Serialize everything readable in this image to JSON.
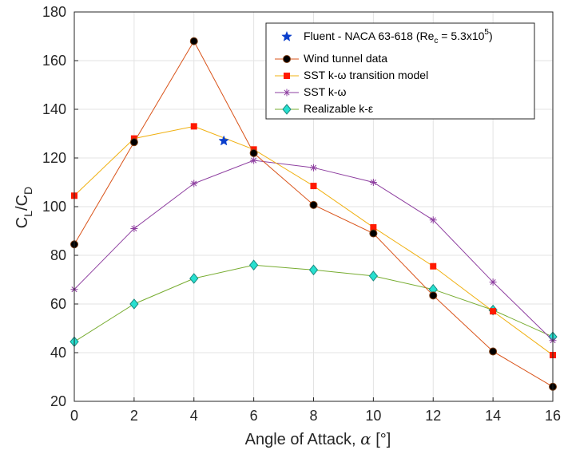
{
  "chart_data": {
    "type": "line",
    "xlabel": "Angle of Attack, α [°]",
    "ylabel": "CL/CD",
    "ylabel_parts": {
      "main1": "C",
      "sub1": "L",
      "slash": "/C",
      "sub2": "D"
    },
    "xlabel_parts": {
      "pre": "Angle of Attack, ",
      "symbol": "α",
      "post": " [°]"
    },
    "xlim": [
      0,
      16
    ],
    "ylim": [
      20,
      180
    ],
    "xticks": [
      0,
      2,
      4,
      6,
      8,
      10,
      12,
      14,
      16
    ],
    "yticks": [
      20,
      40,
      60,
      80,
      100,
      120,
      140,
      160,
      180
    ],
    "grid": true,
    "legend_position": "top-right",
    "series": [
      {
        "name": "Fluent - NACA 63-618 (Rec = 5.3x10^5)",
        "legend_parts": {
          "pre": "Fluent - NACA 63-618 (Re",
          "sub": "c",
          "mid": " = 5.3x10",
          "sup": "5",
          "post": ")"
        },
        "marker": "star",
        "line": false,
        "color": "#0a3fcc",
        "x": [
          5
        ],
        "y": [
          127
        ]
      },
      {
        "name": "Wind tunnel data",
        "marker": "circle",
        "line": true,
        "color": "#d95319",
        "marker_fill": "#000000",
        "marker_edge": "#7a3b12",
        "x": [
          0,
          2,
          4,
          6,
          8,
          10,
          12,
          14,
          16
        ],
        "y": [
          84.5,
          126.5,
          168,
          122,
          100.7,
          89,
          63.5,
          40.5,
          26
        ]
      },
      {
        "name": "SST k-ω transition model",
        "marker": "square",
        "line": true,
        "color": "#f0b010",
        "marker_fill": "#ff1a00",
        "marker_edge": "#ff1a00",
        "x": [
          0,
          2,
          4,
          6,
          8,
          10,
          12,
          14,
          16
        ],
        "y": [
          104.5,
          128,
          133,
          123.5,
          108.5,
          91.5,
          75.5,
          57,
          39
        ]
      },
      {
        "name": "SST k-ω",
        "marker": "asterisk",
        "line": true,
        "color": "#8e3fa0",
        "marker_fill": "#8e3fa0",
        "marker_edge": "#8e3fa0",
        "x": [
          0,
          2,
          4,
          6,
          8,
          10,
          12,
          14,
          16
        ],
        "y": [
          66,
          91,
          109.5,
          119,
          116,
          110,
          94.5,
          69,
          45
        ]
      },
      {
        "name": "Realizable k-ε",
        "marker": "diamond",
        "line": true,
        "color": "#77ac30",
        "marker_fill": "#27e0d0",
        "marker_edge": "#1a8a80",
        "x": [
          0,
          2,
          4,
          6,
          8,
          10,
          12,
          14,
          16
        ],
        "y": [
          44.5,
          60,
          70.5,
          76,
          74,
          71.5,
          66,
          57.5,
          46.5
        ]
      }
    ]
  }
}
